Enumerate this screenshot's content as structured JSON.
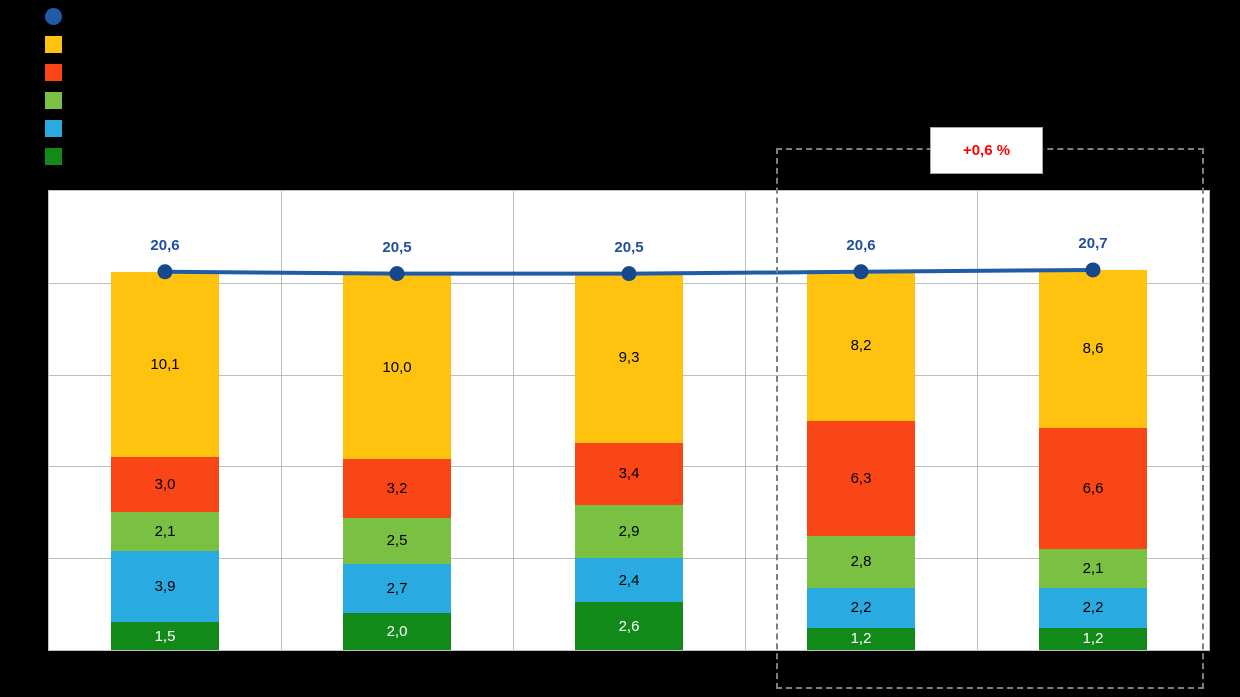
{
  "background": "#000000",
  "legend": {
    "items": [
      {
        "name": "total-line",
        "shape": "circle",
        "color": "#1F5BA8",
        "label": ""
      },
      {
        "name": "yellow",
        "shape": "square",
        "color": "#FFC20E",
        "label": ""
      },
      {
        "name": "orange",
        "shape": "square",
        "color": "#FA4616",
        "label": ""
      },
      {
        "name": "light-green",
        "shape": "square",
        "color": "#7AC143",
        "label": ""
      },
      {
        "name": "cyan",
        "shape": "square",
        "color": "#29ABE2",
        "label": ""
      },
      {
        "name": "dark-green",
        "shape": "square",
        "color": "#128A1A",
        "label": ""
      }
    ]
  },
  "annotation": {
    "label": "+0,6 %",
    "color": "#FF0000"
  },
  "chart_data": {
    "type": "bar",
    "stacked": true,
    "categories": [
      "",
      "",
      "",
      "",
      ""
    ],
    "ylim": [
      0,
      25
    ],
    "ytick_step": 5,
    "grid": true,
    "legend_position": "top-left",
    "series": [
      {
        "name": "dark-green",
        "color": "#128A1A",
        "label_color": "#FFFFFF",
        "values": [
          1.5,
          2.0,
          2.6,
          1.2,
          1.2
        ],
        "display": [
          "1,5",
          "2,0",
          "2,6",
          "1,2",
          "1,2"
        ]
      },
      {
        "name": "cyan",
        "color": "#29ABE2",
        "label_color": "#000000",
        "values": [
          3.9,
          2.7,
          2.4,
          2.2,
          2.2
        ],
        "display": [
          "3,9",
          "2,7",
          "2,4",
          "2,2",
          "2,2"
        ]
      },
      {
        "name": "light-green",
        "color": "#7AC143",
        "label_color": "#000000",
        "values": [
          2.1,
          2.5,
          2.9,
          2.8,
          2.1
        ],
        "display": [
          "2,1",
          "2,5",
          "2,9",
          "2,8",
          "2,1"
        ]
      },
      {
        "name": "orange",
        "color": "#FA4616",
        "label_color": "#000000",
        "values": [
          3.0,
          3.2,
          3.4,
          6.3,
          6.6
        ],
        "display": [
          "3,0",
          "3,2",
          "3,4",
          "6,3",
          "6,6"
        ]
      },
      {
        "name": "yellow",
        "color": "#FFC20E",
        "label_color": "#000000",
        "values": [
          10.1,
          10.0,
          9.3,
          8.2,
          8.6
        ],
        "display": [
          "10,1",
          "10,0",
          "9,3",
          "8,2",
          "8,6"
        ]
      }
    ],
    "line": {
      "name": "total",
      "color": "#1F5BA8",
      "marker_color": "#16498C",
      "label_color": "#1F4E9B",
      "values": [
        20.6,
        20.5,
        20.5,
        20.6,
        20.7
      ],
      "display": [
        "20,6",
        "20,5",
        "20,5",
        "20,6",
        "20,7"
      ]
    },
    "highlight": {
      "columns": [
        3,
        4
      ],
      "annotation": "+0,6 %"
    }
  }
}
